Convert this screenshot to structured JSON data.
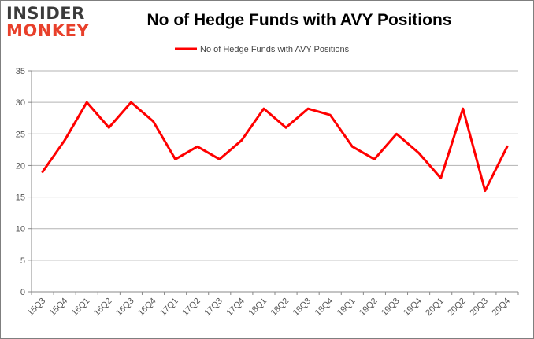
{
  "logo": {
    "line1": "INSIDER",
    "line2": "MONKEY"
  },
  "chart_data": {
    "type": "line",
    "title": "No of Hedge Funds with AVY Positions",
    "xlabel": "",
    "ylabel": "",
    "categories": [
      "15Q3",
      "15Q4",
      "16Q1",
      "16Q2",
      "16Q3",
      "16Q4",
      "17Q1",
      "17Q2",
      "17Q3",
      "17Q4",
      "18Q1",
      "18Q2",
      "18Q3",
      "18Q4",
      "19Q1",
      "19Q2",
      "19Q3",
      "19Q4",
      "20Q1",
      "20Q2",
      "20Q3",
      "20Q4"
    ],
    "series": [
      {
        "name": "No of Hedge Funds with AVY Positions",
        "values": [
          19,
          24,
          30,
          26,
          30,
          27,
          21,
          23,
          21,
          24,
          29,
          26,
          29,
          28,
          23,
          21,
          25,
          22,
          18,
          29,
          16,
          23
        ],
        "color": "#ff0000"
      }
    ],
    "ylim": [
      0,
      35
    ],
    "yticks": [
      0,
      5,
      10,
      15,
      20,
      25,
      30,
      35
    ],
    "grid": true,
    "legend_position": "top-center"
  }
}
